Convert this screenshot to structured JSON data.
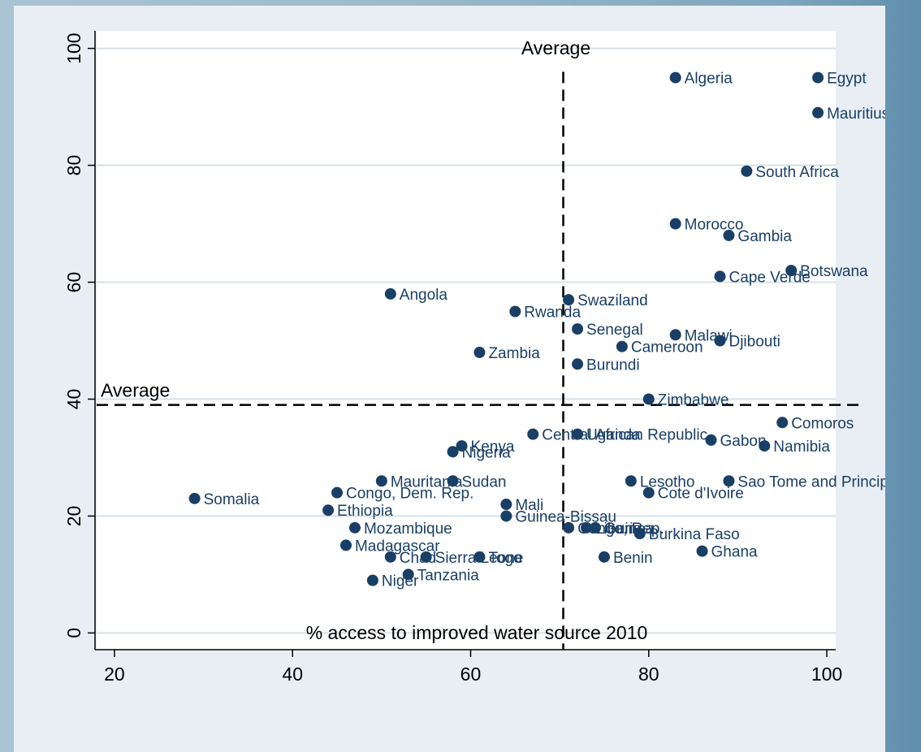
{
  "chart_data": {
    "type": "scatter",
    "title": "",
    "xlabel": "% access to improved water source 2010",
    "ylabel": "",
    "xlim": [
      18,
      101
    ],
    "ylim": [
      -3,
      103
    ],
    "xticks": [
      20,
      40,
      60,
      80,
      100
    ],
    "yticks": [
      0,
      20,
      40,
      60,
      80,
      100
    ],
    "grid": true,
    "legend": "none",
    "reference_lines": [
      {
        "orientation": "vertical",
        "value": 70.4,
        "label": "Average"
      },
      {
        "orientation": "horizontal",
        "value": 39,
        "label": "Average"
      }
    ],
    "colors": {
      "marker": "#1a3f66",
      "label": "#1a3f66",
      "grid": "#d5e1e8",
      "plot_bg": "#ffffff",
      "reference": "#000000"
    },
    "points": [
      {
        "label": "Algeria",
        "x": 83,
        "y": 95
      },
      {
        "label": "Egypt",
        "x": 99,
        "y": 95
      },
      {
        "label": "Mauritius",
        "x": 99,
        "y": 89
      },
      {
        "label": "South Africa",
        "x": 91,
        "y": 79
      },
      {
        "label": "Morocco",
        "x": 83,
        "y": 70
      },
      {
        "label": "Gambia",
        "x": 89,
        "y": 68
      },
      {
        "label": "Botswana",
        "x": 96,
        "y": 62
      },
      {
        "label": "Cape Verde",
        "x": 88,
        "y": 61
      },
      {
        "label": "Angola",
        "x": 51,
        "y": 58
      },
      {
        "label": "Swaziland",
        "x": 71,
        "y": 57
      },
      {
        "label": "Rwanda",
        "x": 65,
        "y": 55
      },
      {
        "label": "Senegal",
        "x": 72,
        "y": 52
      },
      {
        "label": "Malawi",
        "x": 83,
        "y": 51
      },
      {
        "label": "Djibouti",
        "x": 88,
        "y": 50
      },
      {
        "label": "Cameroon",
        "x": 77,
        "y": 49
      },
      {
        "label": "Zambia",
        "x": 61,
        "y": 48
      },
      {
        "label": "Burundi",
        "x": 72,
        "y": 46
      },
      {
        "label": "Zimbabwe",
        "x": 80,
        "y": 40
      },
      {
        "label": "Comoros",
        "x": 95,
        "y": 36
      },
      {
        "label": "Central African Republic",
        "x": 67,
        "y": 34
      },
      {
        "label": "Uganda",
        "x": 72,
        "y": 34
      },
      {
        "label": "Gabon",
        "x": 87,
        "y": 33
      },
      {
        "label": "Namibia",
        "x": 93,
        "y": 32
      },
      {
        "label": "Kenya",
        "x": 59,
        "y": 32
      },
      {
        "label": "Nigeria",
        "x": 58,
        "y": 31
      },
      {
        "label": "Mauritania",
        "x": 50,
        "y": 26
      },
      {
        "label": "Sudan",
        "x": 58,
        "y": 26
      },
      {
        "label": "Lesotho",
        "x": 78,
        "y": 26
      },
      {
        "label": "Sao Tome and Principe",
        "x": 89,
        "y": 26
      },
      {
        "label": "Congo, Dem. Rep.",
        "x": 45,
        "y": 24
      },
      {
        "label": "Cote d'Ivoire",
        "x": 80,
        "y": 24
      },
      {
        "label": "Somalia",
        "x": 29,
        "y": 23
      },
      {
        "label": "Mali",
        "x": 64,
        "y": 22
      },
      {
        "label": "Ethiopia",
        "x": 44,
        "y": 21
      },
      {
        "label": "Guinea-Bissau",
        "x": 64,
        "y": 20
      },
      {
        "label": "Congo, Rep.",
        "x": 71,
        "y": 18
      },
      {
        "label": "Liberia",
        "x": 73,
        "y": 18
      },
      {
        "label": "Guinea",
        "x": 74,
        "y": 18
      },
      {
        "label": "Mozambique",
        "x": 47,
        "y": 18
      },
      {
        "label": "Burkina Faso",
        "x": 79,
        "y": 17
      },
      {
        "label": "Madagascar",
        "x": 46,
        "y": 15
      },
      {
        "label": "Ghana",
        "x": 86,
        "y": 14
      },
      {
        "label": "Chad",
        "x": 51,
        "y": 13
      },
      {
        "label": "Sierra Leone",
        "x": 55,
        "y": 13
      },
      {
        "label": "Togo",
        "x": 61,
        "y": 13
      },
      {
        "label": "Benin",
        "x": 75,
        "y": 13
      },
      {
        "label": "Tanzania",
        "x": 53,
        "y": 10
      },
      {
        "label": "Niger",
        "x": 49,
        "y": 9
      }
    ]
  }
}
